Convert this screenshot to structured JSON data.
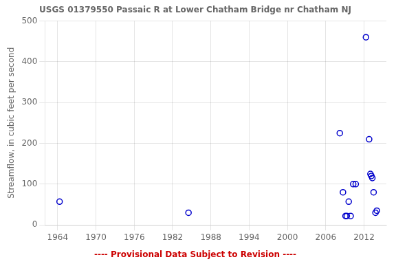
{
  "chart_data": {
    "type": "scatter",
    "title": "USGS 01379550 Passaic R at Lower Chatham Bridge nr Chatham NJ",
    "ylabel": "Streamflow, in cubic feet per second",
    "x": [
      1964.3,
      1984.5,
      2008.2,
      2008.7,
      2009.1,
      2009.3,
      2009.6,
      2009.9,
      2010.3,
      2010.7,
      2012.3,
      2012.8,
      2013.0,
      2013.15,
      2013.3,
      2013.5,
      2013.8,
      2014.0
    ],
    "values": [
      57,
      30,
      225,
      80,
      22,
      22,
      57,
      22,
      100,
      100,
      460,
      210,
      125,
      120,
      115,
      80,
      30,
      35
    ],
    "color": "#0000cc",
    "marker": "circle",
    "xlim": [
      1962,
      2015.5
    ],
    "ylim": [
      0,
      500
    ],
    "xticks": [
      1964,
      1970,
      1976,
      1982,
      1988,
      1994,
      2000,
      2006,
      2012
    ],
    "yticks": [
      0,
      100,
      200,
      300,
      400,
      500
    ],
    "grid": true,
    "annotations": [
      {
        "text": "---- Provisional Data Subject to Revision ----",
        "color": "#cc0000"
      }
    ]
  }
}
